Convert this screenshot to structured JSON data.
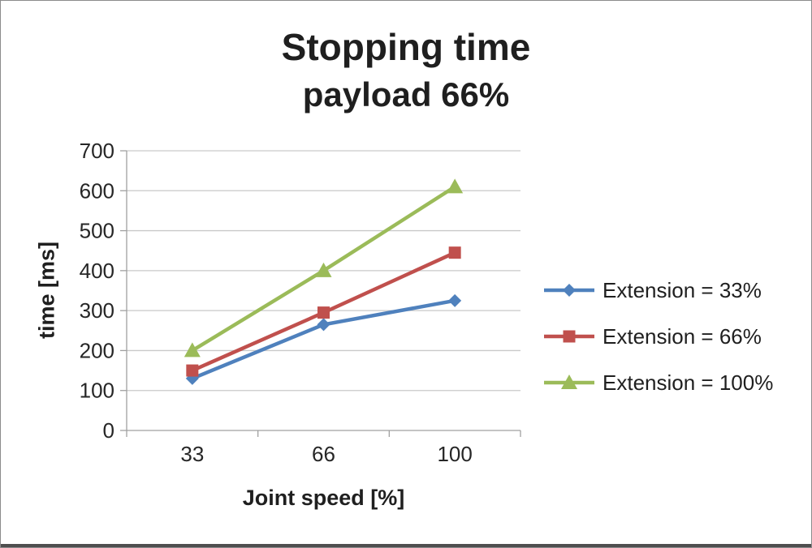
{
  "chart_data": {
    "type": "line",
    "title": "Stopping time",
    "subtitle": "payload 66%",
    "xlabel": "Joint speed [%]",
    "ylabel": "time [ms]",
    "categories": [
      "33",
      "66",
      "100"
    ],
    "series": [
      {
        "name": "Extension = 33%",
        "marker": "diamond",
        "color": "#4F81BD",
        "values": [
          130,
          265,
          325
        ]
      },
      {
        "name": "Extension = 66%",
        "marker": "square",
        "color": "#C0504D",
        "values": [
          150,
          295,
          445
        ]
      },
      {
        "name": "Extension = 100%",
        "marker": "triangle",
        "color": "#9BBB59",
        "values": [
          200,
          400,
          610
        ]
      }
    ],
    "ylim": [
      0,
      700
    ],
    "yticks": [
      0,
      100,
      200,
      300,
      400,
      500,
      600,
      700
    ],
    "grid": true,
    "legend_position": "right",
    "colors": {
      "grid": "#c9c9c9",
      "axis": "#a0a0a0",
      "text": "#1f1f1f"
    }
  }
}
